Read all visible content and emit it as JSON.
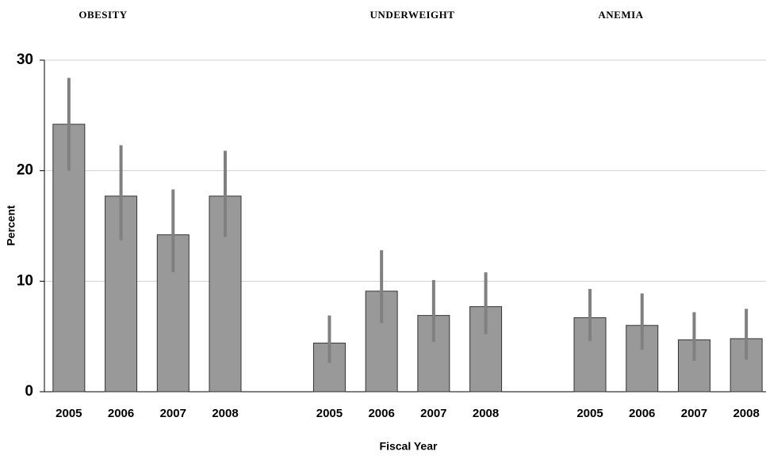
{
  "chart_data": {
    "type": "bar",
    "groups": [
      "OBESITY",
      "UNDERWEIGHT",
      "ANEMIA"
    ],
    "ylabel": "Percent",
    "xlabel": "Fiscal Year",
    "categories": [
      "2005",
      "2006",
      "2007",
      "2008",
      null,
      "2005",
      "2006",
      "2007",
      "2008",
      null,
      "2005",
      "2006",
      "2007",
      "2008"
    ],
    "values": [
      24.2,
      17.7,
      14.2,
      17.7,
      null,
      4.4,
      9.1,
      6.9,
      7.7,
      null,
      6.7,
      6.0,
      4.7,
      4.8
    ],
    "lower": [
      20.0,
      13.7,
      10.8,
      14.0,
      null,
      2.6,
      6.2,
      4.5,
      5.2,
      null,
      4.6,
      3.8,
      2.8,
      2.9
    ],
    "upper": [
      28.4,
      22.3,
      18.3,
      21.8,
      null,
      6.9,
      12.8,
      10.1,
      10.8,
      null,
      9.3,
      8.9,
      7.2,
      7.5
    ],
    "color": "#999999",
    "error_color": "#808080",
    "ylim": [
      0,
      30
    ],
    "yticks": [
      0,
      10,
      20,
      30
    ],
    "grid": true
  }
}
